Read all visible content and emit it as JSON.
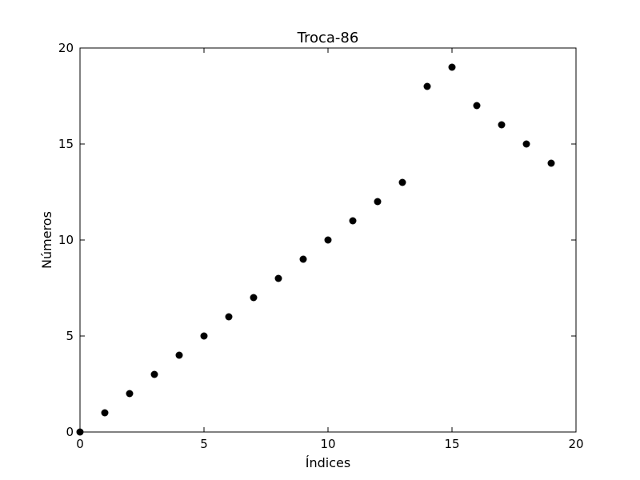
{
  "chart_data": {
    "type": "scatter",
    "title": "Troca-86",
    "xlabel": "Índices",
    "ylabel": "Números",
    "xlim": [
      0,
      20
    ],
    "ylim": [
      0,
      20
    ],
    "xticks": [
      0,
      5,
      10,
      15,
      20
    ],
    "yticks": [
      0,
      5,
      10,
      15,
      20
    ],
    "grid": false,
    "x": [
      0,
      1,
      2,
      3,
      4,
      5,
      6,
      7,
      8,
      9,
      10,
      11,
      12,
      13,
      14,
      15,
      16,
      17,
      18,
      19
    ],
    "y": [
      0,
      1,
      2,
      3,
      4,
      5,
      6,
      7,
      8,
      9,
      10,
      11,
      12,
      13,
      18,
      19,
      17,
      16,
      15,
      14
    ],
    "colors": {
      "marker": "#000000",
      "axes": "#000000",
      "background": "#ffffff"
    }
  }
}
